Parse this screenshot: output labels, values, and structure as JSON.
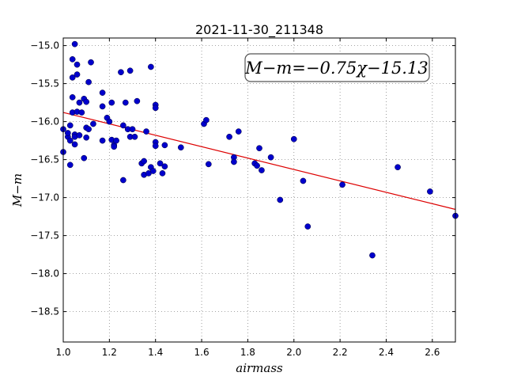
{
  "chart_data": {
    "type": "scatter",
    "title": "2021-11-30_211348",
    "xlabel": "airmass",
    "ylabel": "M−m",
    "xlim": [
      1.0,
      2.7
    ],
    "ylim": [
      -14.9,
      -18.9
    ],
    "y_inverted": true,
    "grid": true,
    "x_ticks": [
      "1.0",
      "1.2",
      "1.4",
      "1.6",
      "1.8",
      "2.0",
      "2.2",
      "2.4",
      "2.6"
    ],
    "y_ticks": [
      "−15.0",
      "−15.5",
      "−16.0",
      "−16.5",
      "−17.0",
      "−17.5",
      "−18.0",
      "−18.5"
    ],
    "annotation": "M−m=−0.75χ−15.13",
    "point_color": "#0000cc",
    "fit_color": "#dd0000",
    "fit": {
      "slope": -0.75,
      "intercept": -15.13
    },
    "points": [
      [
        1.0,
        -16.1
      ],
      [
        1.0,
        -16.4
      ],
      [
        1.02,
        -16.2
      ],
      [
        1.02,
        -16.15
      ],
      [
        1.03,
        -16.25
      ],
      [
        1.03,
        -16.05
      ],
      [
        1.03,
        -16.57
      ],
      [
        1.04,
        -15.18
      ],
      [
        1.04,
        -15.42
      ],
      [
        1.04,
        -15.88
      ],
      [
        1.04,
        -15.68
      ],
      [
        1.05,
        -14.98
      ],
      [
        1.05,
        -16.17
      ],
      [
        1.05,
        -16.3
      ],
      [
        1.05,
        -16.2
      ],
      [
        1.06,
        -15.25
      ],
      [
        1.06,
        -15.87
      ],
      [
        1.06,
        -15.38
      ],
      [
        1.07,
        -15.75
      ],
      [
        1.07,
        -16.18
      ],
      [
        1.08,
        -15.88
      ],
      [
        1.09,
        -15.7
      ],
      [
        1.09,
        -16.48
      ],
      [
        1.1,
        -15.74
      ],
      [
        1.1,
        -16.08
      ],
      [
        1.1,
        -16.21
      ],
      [
        1.11,
        -15.48
      ],
      [
        1.11,
        -16.1
      ],
      [
        1.12,
        -15.22
      ],
      [
        1.13,
        -16.03
      ],
      [
        1.17,
        -15.62
      ],
      [
        1.17,
        -16.25
      ],
      [
        1.17,
        -15.8
      ],
      [
        1.19,
        -15.95
      ],
      [
        1.2,
        -16.0
      ],
      [
        1.21,
        -15.75
      ],
      [
        1.21,
        -16.24
      ],
      [
        1.22,
        -16.31
      ],
      [
        1.22,
        -16.33
      ],
      [
        1.23,
        -16.25
      ],
      [
        1.25,
        -15.35
      ],
      [
        1.26,
        -16.05
      ],
      [
        1.26,
        -16.77
      ],
      [
        1.27,
        -15.75
      ],
      [
        1.28,
        -16.1
      ],
      [
        1.29,
        -15.33
      ],
      [
        1.29,
        -16.2
      ],
      [
        1.3,
        -16.1
      ],
      [
        1.31,
        -16.2
      ],
      [
        1.32,
        -15.73
      ],
      [
        1.34,
        -16.55
      ],
      [
        1.35,
        -16.52
      ],
      [
        1.35,
        -16.7
      ],
      [
        1.36,
        -16.13
      ],
      [
        1.37,
        -16.68
      ],
      [
        1.38,
        -15.28
      ],
      [
        1.38,
        -16.6
      ],
      [
        1.39,
        -16.65
      ],
      [
        1.4,
        -15.78
      ],
      [
        1.4,
        -15.82
      ],
      [
        1.4,
        -16.27
      ],
      [
        1.4,
        -16.32
      ],
      [
        1.42,
        -16.55
      ],
      [
        1.43,
        -16.68
      ],
      [
        1.44,
        -16.59
      ],
      [
        1.44,
        -16.31
      ],
      [
        1.51,
        -16.34
      ],
      [
        1.61,
        -16.03
      ],
      [
        1.62,
        -15.98
      ],
      [
        1.63,
        -16.56
      ],
      [
        1.72,
        -16.2
      ],
      [
        1.74,
        -16.47
      ],
      [
        1.74,
        -16.53
      ],
      [
        1.76,
        -16.13
      ],
      [
        1.83,
        -16.55
      ],
      [
        1.84,
        -16.58
      ],
      [
        1.85,
        -16.35
      ],
      [
        1.86,
        -16.64
      ],
      [
        1.9,
        -16.47
      ],
      [
        1.94,
        -17.03
      ],
      [
        2.0,
        -16.23
      ],
      [
        2.04,
        -16.78
      ],
      [
        2.06,
        -17.38
      ],
      [
        2.21,
        -16.83
      ],
      [
        2.34,
        -17.76
      ],
      [
        2.45,
        -16.6
      ],
      [
        2.59,
        -16.92
      ],
      [
        2.7,
        -17.24
      ]
    ]
  }
}
